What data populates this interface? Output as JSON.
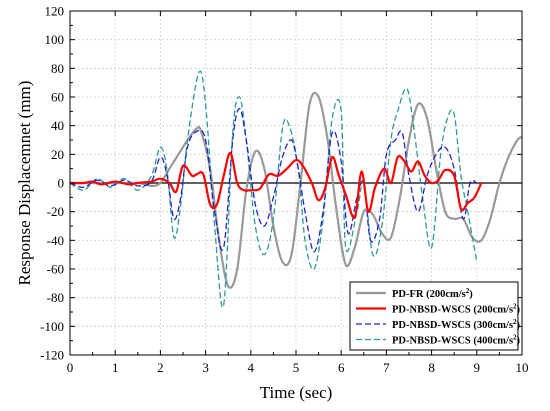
{
  "chart_data": {
    "type": "line",
    "xlabel": "Time (sec)",
    "ylabel": "Response Displacemnet (mm)",
    "xlim": [
      0,
      10
    ],
    "ylim": [
      -120,
      120
    ],
    "xticks": [
      0,
      1,
      2,
      3,
      4,
      5,
      6,
      7,
      8,
      9,
      10
    ],
    "yticks": [
      -120,
      -100,
      -80,
      -60,
      -40,
      -20,
      0,
      20,
      40,
      60,
      80,
      100,
      120
    ],
    "grid": true,
    "zero_line": true,
    "legend_position": "bottom-right",
    "series": [
      {
        "name": "PD-FR (200cm/s2)",
        "label_main": "PD-FR (200cm/s",
        "label_sup": "2",
        "label_end": ")",
        "color": "#999999",
        "dash": "",
        "width": 2.2,
        "x": [
          0,
          0.5,
          1,
          1.5,
          1.8,
          2.0,
          2.2,
          2.4,
          2.6,
          2.8,
          2.9,
          3.1,
          3.3,
          3.5,
          3.7,
          3.9,
          4.1,
          4.3,
          4.5,
          4.7,
          4.9,
          5.1,
          5.3,
          5.5,
          5.7,
          5.9,
          6.1,
          6.3,
          6.5,
          6.7,
          6.9,
          7.1,
          7.3,
          7.5,
          7.7,
          7.9,
          8.1,
          8.3,
          8.5,
          8.7,
          8.9,
          9.1,
          9.3,
          9.5,
          9.7,
          9.9,
          10
        ],
        "y": [
          0,
          0,
          0,
          0,
          -2,
          0,
          10,
          20,
          30,
          38,
          36,
          10,
          -40,
          -72,
          -60,
          -5,
          22,
          10,
          -30,
          -55,
          -50,
          0,
          55,
          60,
          30,
          -20,
          -57,
          -45,
          -20,
          -22,
          -35,
          -38,
          -10,
          30,
          55,
          45,
          10,
          -20,
          -25,
          -25,
          -38,
          -40,
          -25,
          0,
          18,
          30,
          32
        ]
      },
      {
        "name": "PD-NBSD-WSCS (200cm/s2)",
        "label_main": "PD-NBSD-WSCS (200cm/s",
        "label_sup": "2",
        "label_end": ")",
        "color": "#ff0000",
        "dash": "",
        "width": 2.2,
        "x": [
          0,
          0.3,
          0.5,
          0.7,
          1.0,
          1.3,
          1.5,
          1.8,
          2.0,
          2.2,
          2.35,
          2.5,
          2.7,
          2.8,
          2.95,
          3.1,
          3.25,
          3.4,
          3.55,
          3.7,
          3.85,
          4.0,
          4.2,
          4.4,
          4.6,
          4.8,
          5.0,
          5.15,
          5.35,
          5.5,
          5.65,
          5.8,
          5.95,
          6.1,
          6.3,
          6.45,
          6.6,
          6.75,
          6.95,
          7.1,
          7.25,
          7.4,
          7.55,
          7.7,
          7.85,
          8.0,
          8.15,
          8.3,
          8.5,
          8.65,
          8.8,
          8.95,
          9.1
        ],
        "y": [
          0,
          0,
          1,
          -1,
          1,
          -1,
          0,
          1,
          3,
          0,
          -6,
          12,
          5,
          6,
          6,
          -15,
          -15,
          5,
          21,
          0,
          -5,
          -5,
          -4,
          6,
          5,
          10,
          16,
          12,
          0,
          -12,
          -3,
          18,
          5,
          -8,
          -24,
          8,
          -20,
          -3,
          10,
          0,
          18,
          15,
          8,
          15,
          5,
          0,
          2,
          9,
          5,
          -18,
          -14,
          -10,
          0
        ]
      },
      {
        "name": "PD-NBSD-WSCS (300cm/s2)",
        "label_main": "PD-NBSD-WSCS (300cm/s",
        "label_sup": "2",
        "label_end": ")",
        "color": "#2222cc",
        "dash": "6 3",
        "width": 1.3,
        "x": [
          0,
          0.3,
          0.6,
          0.9,
          1.2,
          1.5,
          1.8,
          2.0,
          2.15,
          2.3,
          2.45,
          2.6,
          2.8,
          3.0,
          3.2,
          3.4,
          3.6,
          3.75,
          3.9,
          4.1,
          4.3,
          4.5,
          4.7,
          4.9,
          5.05,
          5.2,
          5.4,
          5.6,
          5.8,
          6.0,
          6.15,
          6.35,
          6.5,
          6.65,
          6.85,
          7.0,
          7.2,
          7.35,
          7.5,
          7.7,
          7.9,
          8.1,
          8.3,
          8.5,
          8.7,
          8.85,
          9.0
        ],
        "y": [
          0,
          -3,
          2,
          -2,
          2,
          -2,
          1,
          18,
          5,
          -25,
          -10,
          25,
          36,
          30,
          -20,
          -45,
          30,
          52,
          30,
          -15,
          -30,
          -10,
          18,
          30,
          10,
          -20,
          -48,
          -20,
          35,
          15,
          -35,
          -10,
          0,
          -40,
          -25,
          20,
          30,
          35,
          5,
          -20,
          5,
          20,
          25,
          10,
          -25,
          0,
          0
        ]
      },
      {
        "name": "PD-NBSD-WSCS (400cm/s2)",
        "label_main": "PD-NBSD-WSCS (400cm/s",
        "label_sup": "2",
        "label_end": ")",
        "color": "#2a9d8f",
        "dash": "6 3",
        "width": 1.3,
        "x": [
          0,
          0.3,
          0.6,
          0.9,
          1.2,
          1.5,
          1.8,
          2.0,
          2.15,
          2.3,
          2.45,
          2.6,
          2.85,
          3.0,
          3.2,
          3.4,
          3.6,
          3.75,
          3.9,
          4.1,
          4.3,
          4.5,
          4.7,
          4.85,
          5.05,
          5.2,
          5.4,
          5.6,
          5.8,
          6.0,
          6.1,
          6.35,
          6.5,
          6.7,
          6.9,
          7.1,
          7.25,
          7.45,
          7.6,
          7.8,
          8.0,
          8.2,
          8.35,
          8.5,
          8.65,
          8.8,
          9.0
        ],
        "y": [
          0,
          -5,
          3,
          -3,
          3,
          -5,
          5,
          25,
          8,
          -38,
          -15,
          30,
          77,
          55,
          -30,
          -85,
          35,
          60,
          30,
          -30,
          -50,
          -25,
          38,
          40,
          10,
          -40,
          -60,
          -25,
          45,
          50,
          -45,
          -20,
          0,
          -50,
          -30,
          30,
          50,
          66,
          40,
          -10,
          -45,
          20,
          45,
          48,
          5,
          -20,
          -55
        ]
      }
    ]
  }
}
